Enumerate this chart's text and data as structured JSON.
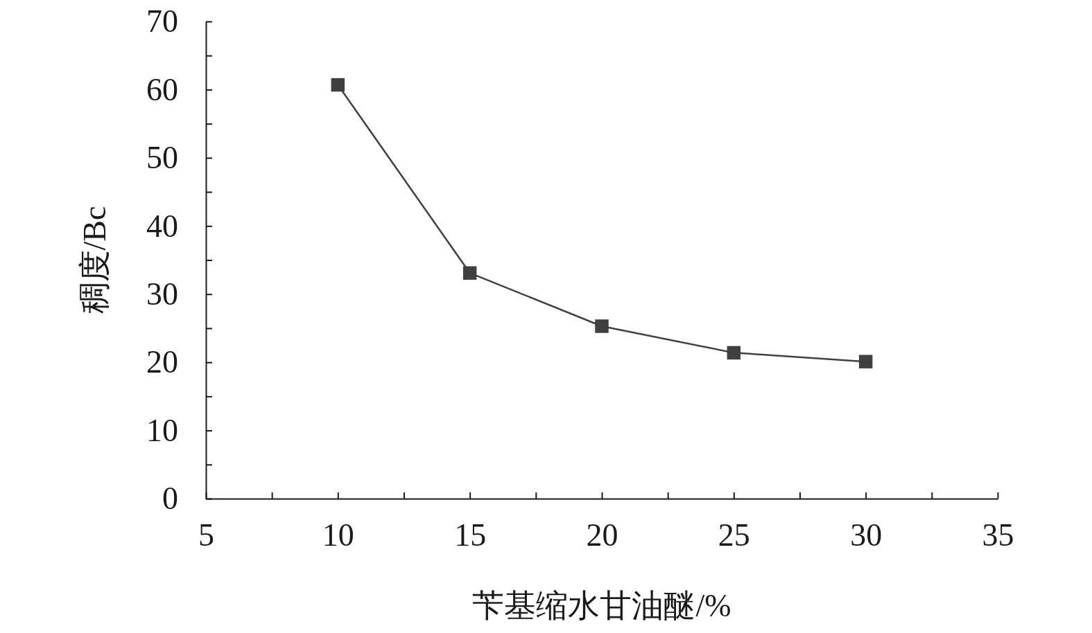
{
  "chart_data": {
    "type": "line",
    "xlabel": "苄基缩水甘油醚/%",
    "ylabel": "稠度/Bc",
    "x": [
      10,
      15,
      20,
      25,
      30
    ],
    "series": [
      {
        "color": "#404040",
        "values": [
          60.7,
          33.1,
          25.3,
          21.4,
          20.1
        ]
      }
    ],
    "marker": "square",
    "line_style": "solid",
    "xlim": [
      5,
      35
    ],
    "xticks": [
      5,
      {
        "value": 7.5,
        "label": null
      },
      10,
      {
        "value": 12.5,
        "label": null
      },
      15,
      {
        "value": 17.5,
        "label": null
      },
      20,
      {
        "value": 22.5,
        "label": null
      },
      25,
      {
        "value": 27.5,
        "label": null
      },
      30,
      {
        "value": 32.5,
        "label": null
      },
      35
    ],
    "ylim": [
      0,
      70
    ],
    "yticks": [
      0,
      {
        "value": 5,
        "label": null
      },
      10,
      {
        "value": 15,
        "label": null
      },
      20,
      {
        "value": 25,
        "label": null
      },
      30,
      {
        "value": 35,
        "label": null
      },
      40,
      {
        "value": 45,
        "label": null
      },
      50,
      {
        "value": 55,
        "label": null
      },
      60,
      {
        "value": 65,
        "label": null
      },
      70
    ],
    "grid": false
  }
}
